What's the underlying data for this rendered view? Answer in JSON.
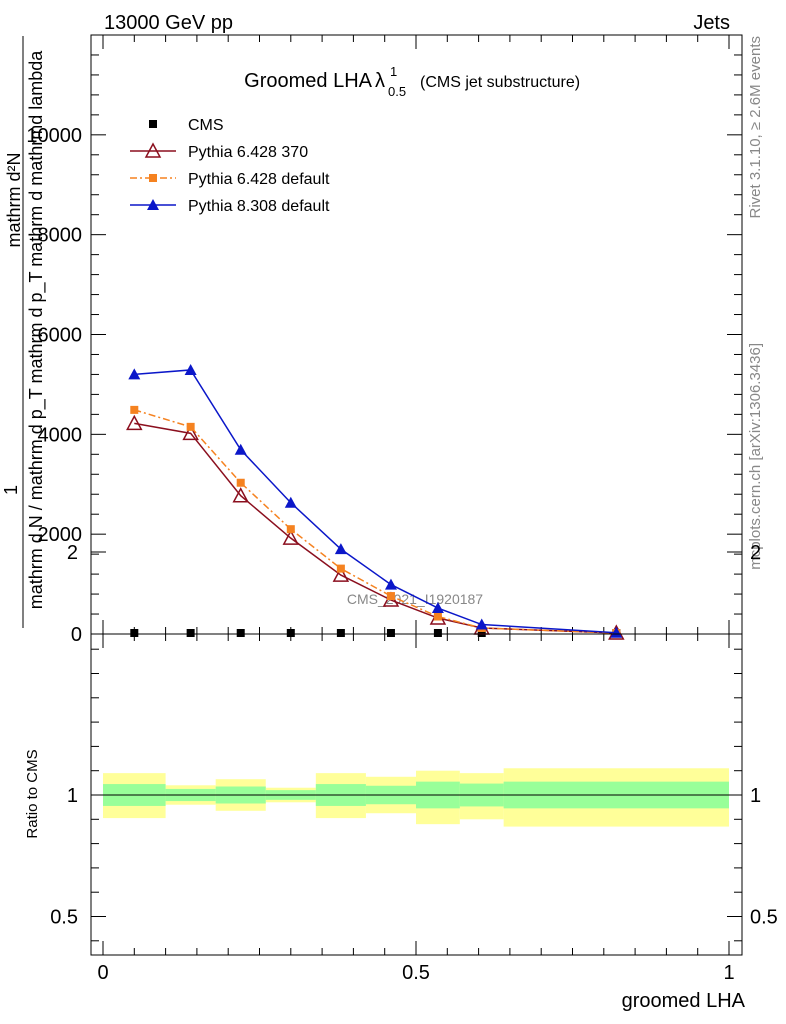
{
  "header": {
    "left": "13000 GeV pp",
    "right": "Jets"
  },
  "side_labels": {
    "rivet": "Rivet 3.1.10, ≥ 2.6M events",
    "mcplots": "mcplots.cern.ch [arXiv:1306.3436]"
  },
  "chart_data": [
    {
      "type": "line",
      "panel": "main",
      "title": "Groomed LHA",
      "title_symbol": "λ",
      "title_sup": "1",
      "title_sub": "0.5",
      "subtitle": "(CMS jet substructure)",
      "watermark": "CMS_2021_I1920187",
      "xlabel": "",
      "ylabel_top": "1",
      "ylabel_num": "mathrm d²N",
      "ylabel_den": "mathrm d N / mathrm d p_T mathrm d p_T mathrm d mathrmd lambda",
      "ylim": [
        0,
        12000
      ],
      "xlim": [
        0,
        1
      ],
      "yticks_major": [
        2000,
        4000,
        6000,
        8000,
        10000
      ],
      "ytick_labels": [
        "2000",
        "4000",
        "6000",
        "8000",
        "10000"
      ],
      "yticks_minor_step": 400,
      "legend_position": "top-left",
      "series": [
        {
          "name": "CMS",
          "style": "points",
          "marker": "square",
          "color": "#000000",
          "x": [
            0.05,
            0.14,
            0.22,
            0.3,
            0.38,
            0.46,
            0.535,
            0.605,
            0.82
          ],
          "y": [
            0,
            0,
            0,
            0,
            0,
            0,
            0,
            0,
            0
          ]
        },
        {
          "name": "Pythia 6.428 370",
          "style": "solid",
          "marker": "open-triangle",
          "color": "#8b0f1e",
          "x": [
            0.05,
            0.14,
            0.22,
            0.3,
            0.38,
            0.46,
            0.535,
            0.605,
            0.82
          ],
          "y": [
            4220,
            4020,
            2770,
            1920,
            1180,
            680,
            320,
            120,
            20
          ]
        },
        {
          "name": "Pythia 6.428 default",
          "style": "dashdot",
          "marker": "square",
          "color": "#f58220",
          "x": [
            0.05,
            0.14,
            0.22,
            0.3,
            0.38,
            0.46,
            0.535,
            0.605,
            0.82
          ],
          "y": [
            4490,
            4150,
            3030,
            2100,
            1310,
            760,
            350,
            120,
            20
          ]
        },
        {
          "name": "Pythia 8.308 default",
          "style": "solid",
          "marker": "triangle",
          "color": "#0b17c9",
          "x": [
            0.05,
            0.14,
            0.22,
            0.3,
            0.38,
            0.46,
            0.535,
            0.605,
            0.82
          ],
          "y": [
            5200,
            5290,
            3690,
            2630,
            1700,
            990,
            520,
            190,
            25
          ]
        }
      ]
    },
    {
      "type": "area",
      "panel": "ratio",
      "ylabel": "Ratio to CMS",
      "xlabel": "groomed LHA",
      "ylim": [
        0.3,
        2.3
      ],
      "xlim": [
        0,
        1
      ],
      "xticks": [
        0,
        0.5,
        1
      ],
      "xtick_labels": [
        "0",
        "0.5",
        "1"
      ],
      "yticks": [
        0.5,
        1,
        2
      ],
      "ytick_labels": [
        "0.5",
        "1",
        "2"
      ],
      "reference_line": 1,
      "bands": {
        "green_color": "#99ff99",
        "yellow_color": "#ffff99",
        "bins": [
          {
            "x0": 0.0,
            "x1": 0.1,
            "inner": [
              0.955,
              1.045
            ],
            "outer": [
              0.905,
              1.09
            ]
          },
          {
            "x0": 0.1,
            "x1": 0.18,
            "inner": [
              0.975,
              1.025
            ],
            "outer": [
              0.96,
              1.04
            ]
          },
          {
            "x0": 0.18,
            "x1": 0.26,
            "inner": [
              0.965,
              1.035
            ],
            "outer": [
              0.935,
              1.065
            ]
          },
          {
            "x0": 0.26,
            "x1": 0.34,
            "inner": [
              0.98,
              1.02
            ],
            "outer": [
              0.97,
              1.03
            ]
          },
          {
            "x0": 0.34,
            "x1": 0.42,
            "inner": [
              0.955,
              1.045
            ],
            "outer": [
              0.905,
              1.09
            ]
          },
          {
            "x0": 0.42,
            "x1": 0.5,
            "inner": [
              0.962,
              1.038
            ],
            "outer": [
              0.925,
              1.075
            ]
          },
          {
            "x0": 0.5,
            "x1": 0.57,
            "inner": [
              0.945,
              1.055
            ],
            "outer": [
              0.88,
              1.1
            ]
          },
          {
            "x0": 0.57,
            "x1": 0.64,
            "inner": [
              0.953,
              1.047
            ],
            "outer": [
              0.9,
              1.09
            ]
          },
          {
            "x0": 0.64,
            "x1": 1.0,
            "inner": [
              0.945,
              1.055
            ],
            "outer": [
              0.87,
              1.11
            ]
          }
        ]
      }
    }
  ]
}
